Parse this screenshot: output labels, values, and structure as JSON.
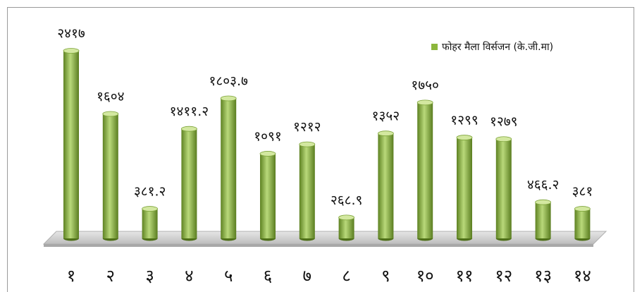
{
  "chart_data": {
    "type": "bar",
    "categories": [
      "१",
      "२",
      "३",
      "४",
      "५",
      "६",
      "७",
      "८",
      "९",
      "१०",
      "११",
      "१२",
      "१३",
      "१४"
    ],
    "series": [
      {
        "name": "फोहर मैला विर्सजन (के.जी.मा)",
        "color": "#8cb63c",
        "values": [
          2417,
          1604,
          381.2,
          1411.2,
          1803.7,
          1091,
          1212,
          268.9,
          1352,
          1750,
          1299,
          1279,
          466.2,
          381
        ],
        "value_labels": [
          "२४१७",
          "१६०४",
          "३८१.२",
          "१४११.२",
          "१८०३.७",
          "१०९१",
          "१२१२",
          "२६८.९",
          "१३५२",
          "१७५०",
          "१२९९",
          "१२७९",
          "४६६.२",
          "३८१"
        ]
      }
    ],
    "legend": "top-right"
  }
}
